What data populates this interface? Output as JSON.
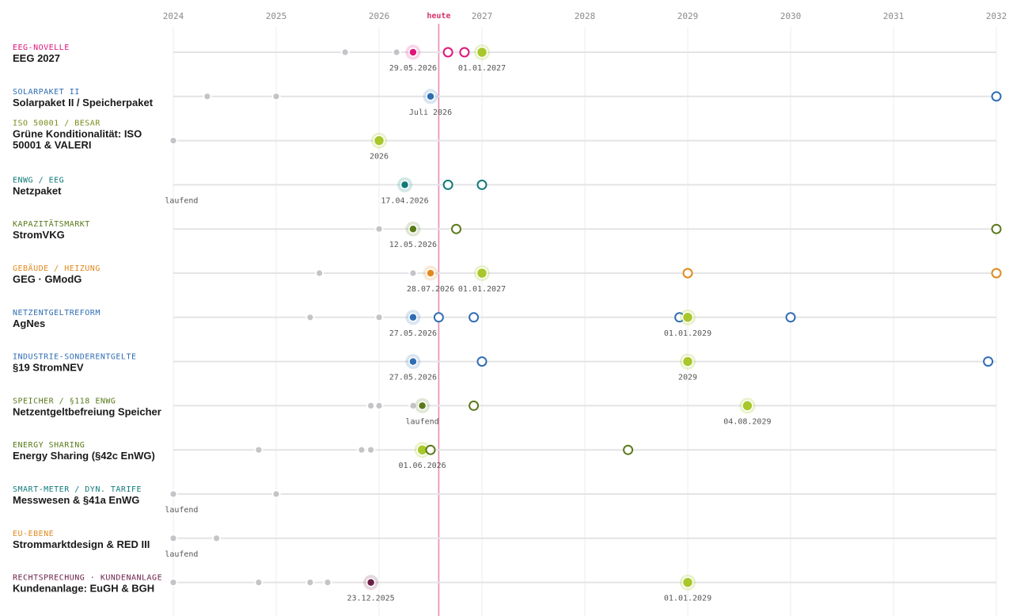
{
  "chart_data": {
    "type": "scatter",
    "x_axis": {
      "min": 2024.0,
      "max": 2032.0,
      "ticks": [
        "2024",
        "2025",
        "2026",
        "2027",
        "2028",
        "2029",
        "2030",
        "2031",
        "2032"
      ]
    },
    "today": {
      "label": "heute",
      "x": 2026.58
    },
    "colors": {
      "gray": "#c4c4c8",
      "milestone": "#a8c72b",
      "pink": "#e0157a",
      "blue": "#2f6db3",
      "olive": "#5a7a1a",
      "teal": "#117a7a",
      "orange": "#e08a1e",
      "oliveAlt": "#7a8a1a",
      "plum": "#6a1f48",
      "today_line": "#e88bb5"
    },
    "rows": [
      {
        "category": "EEG-NOVELLE",
        "title": [
          "EEG 2027"
        ],
        "color": "#e0157a",
        "points": [
          {
            "x": 2025.67,
            "kind": "past"
          },
          {
            "x": 2026.17,
            "kind": "past"
          },
          {
            "x": 2026.33,
            "kind": "current"
          },
          {
            "x": 2026.67,
            "kind": "future"
          },
          {
            "x": 2026.83,
            "kind": "future"
          },
          {
            "x": 2027.0,
            "kind": "milestone"
          }
        ],
        "labels": [
          {
            "x": 2026.33,
            "text": "29.05.2026"
          },
          {
            "x": 2027.0,
            "text": "01.01.2027"
          }
        ]
      },
      {
        "category": "SOLARPAKET II",
        "title": [
          "Solarpaket II / Speicherpaket"
        ],
        "color": "#2f6db3",
        "points": [
          {
            "x": 2024.33,
            "kind": "past"
          },
          {
            "x": 2025.0,
            "kind": "past"
          },
          {
            "x": 2026.5,
            "kind": "current"
          },
          {
            "x": 2032.0,
            "kind": "future"
          }
        ],
        "labels": [
          {
            "x": 2026.5,
            "text": "Juli 2026"
          }
        ]
      },
      {
        "category": "ISO 50001 / BESAR",
        "title": [
          "Grüne Konditionalität: ISO",
          "50001 & VALERI"
        ],
        "color": "#7a8a1a",
        "points": [
          {
            "x": 2024.0,
            "kind": "past"
          },
          {
            "x": 2026.0,
            "kind": "milestone"
          }
        ],
        "labels": [
          {
            "x": 2026.0,
            "text": "2026"
          }
        ]
      },
      {
        "category": "ENWG / EEG",
        "title": [
          "Netzpaket"
        ],
        "color": "#117a7a",
        "points": [
          {
            "x": 2026.25,
            "kind": "current"
          },
          {
            "x": 2026.67,
            "kind": "future"
          },
          {
            "x": 2027.0,
            "kind": "future"
          }
        ],
        "labels": [
          {
            "x": 2024.08,
            "text": "laufend"
          },
          {
            "x": 2026.25,
            "text": "17.04.2026"
          }
        ]
      },
      {
        "category": "KAPAZITÄTSMARKT",
        "title": [
          "StromVKG"
        ],
        "color": "#5a7a1a",
        "points": [
          {
            "x": 2026.0,
            "kind": "past"
          },
          {
            "x": 2026.33,
            "kind": "current"
          },
          {
            "x": 2026.75,
            "kind": "future"
          },
          {
            "x": 2032.0,
            "kind": "future"
          }
        ],
        "labels": [
          {
            "x": 2026.33,
            "text": "12.05.2026"
          }
        ]
      },
      {
        "category": "GEBÄUDE / HEIZUNG",
        "title": [
          "GEG · GModG"
        ],
        "color": "#e08a1e",
        "points": [
          {
            "x": 2025.42,
            "kind": "past"
          },
          {
            "x": 2026.33,
            "kind": "past"
          },
          {
            "x": 2026.5,
            "kind": "current"
          },
          {
            "x": 2027.0,
            "kind": "milestone"
          },
          {
            "x": 2029.0,
            "kind": "future"
          },
          {
            "x": 2032.0,
            "kind": "future"
          }
        ],
        "labels": [
          {
            "x": 2026.5,
            "text": "28.07.2026"
          },
          {
            "x": 2027.0,
            "text": "01.01.2027"
          }
        ]
      },
      {
        "category": "NETZENTGELTREFORM",
        "title": [
          "AgNes"
        ],
        "color": "#2f6db3",
        "points": [
          {
            "x": 2025.33,
            "kind": "past"
          },
          {
            "x": 2026.0,
            "kind": "past"
          },
          {
            "x": 2026.33,
            "kind": "current"
          },
          {
            "x": 2026.58,
            "kind": "future"
          },
          {
            "x": 2026.92,
            "kind": "future"
          },
          {
            "x": 2028.92,
            "kind": "future"
          },
          {
            "x": 2029.0,
            "kind": "milestone"
          },
          {
            "x": 2030.0,
            "kind": "future"
          }
        ],
        "labels": [
          {
            "x": 2026.33,
            "text": "27.05.2026"
          },
          {
            "x": 2029.0,
            "text": "01.01.2029"
          }
        ]
      },
      {
        "category": "INDUSTRIE-SONDERENTGELTE",
        "title": [
          "§19 StromNEV"
        ],
        "color": "#2f6db3",
        "points": [
          {
            "x": 2026.33,
            "kind": "current"
          },
          {
            "x": 2027.0,
            "kind": "future"
          },
          {
            "x": 2029.0,
            "kind": "milestone"
          },
          {
            "x": 2031.92,
            "kind": "future"
          }
        ],
        "labels": [
          {
            "x": 2026.33,
            "text": "27.05.2026"
          },
          {
            "x": 2029.0,
            "text": "2029"
          }
        ]
      },
      {
        "category": "SPEICHER / §118 ENWG",
        "title": [
          "Netzentgeltbefreiung Speicher"
        ],
        "color": "#5a7a1a",
        "points": [
          {
            "x": 2025.92,
            "kind": "past"
          },
          {
            "x": 2026.0,
            "kind": "past"
          },
          {
            "x": 2026.33,
            "kind": "past"
          },
          {
            "x": 2026.42,
            "kind": "current"
          },
          {
            "x": 2026.92,
            "kind": "future"
          },
          {
            "x": 2029.58,
            "kind": "milestone"
          }
        ],
        "labels": [
          {
            "x": 2026.42,
            "text": "laufend"
          },
          {
            "x": 2029.58,
            "text": "04.08.2029"
          }
        ]
      },
      {
        "category": "ENERGY SHARING",
        "title": [
          "Energy Sharing (§42c EnWG)"
        ],
        "color": "#5a7a1a",
        "points": [
          {
            "x": 2024.83,
            "kind": "past"
          },
          {
            "x": 2025.83,
            "kind": "past"
          },
          {
            "x": 2025.92,
            "kind": "past"
          },
          {
            "x": 2026.42,
            "kind": "milestone"
          },
          {
            "x": 2026.5,
            "kind": "future"
          },
          {
            "x": 2028.42,
            "kind": "future"
          }
        ],
        "labels": [
          {
            "x": 2026.42,
            "text": "01.06.2026"
          }
        ]
      },
      {
        "category": "SMART-METER / DYN. TARIFE",
        "title": [
          "Messwesen & §41a EnWG"
        ],
        "color": "#117a7a",
        "points": [
          {
            "x": 2024.0,
            "kind": "past"
          },
          {
            "x": 2025.0,
            "kind": "past"
          }
        ],
        "labels": [
          {
            "x": 2024.08,
            "text": "laufend"
          }
        ]
      },
      {
        "category": "EU-EBENE",
        "title": [
          "Strommarktdesign & RED III"
        ],
        "color": "#e08a1e",
        "points": [
          {
            "x": 2024.0,
            "kind": "past"
          },
          {
            "x": 2024.42,
            "kind": "past"
          }
        ],
        "labels": [
          {
            "x": 2024.08,
            "text": "laufend"
          }
        ]
      },
      {
        "category": "RECHTSPRECHUNG · KUNDENANLAGE",
        "title": [
          "Kundenanlage: EuGH & BGH"
        ],
        "color": "#6a1f48",
        "points": [
          {
            "x": 2024.0,
            "kind": "past"
          },
          {
            "x": 2024.83,
            "kind": "past"
          },
          {
            "x": 2025.33,
            "kind": "past"
          },
          {
            "x": 2025.5,
            "kind": "past"
          },
          {
            "x": 2025.92,
            "kind": "current"
          },
          {
            "x": 2029.0,
            "kind": "milestone"
          }
        ],
        "labels": [
          {
            "x": 2025.92,
            "text": "23.12.2025"
          },
          {
            "x": 2029.0,
            "text": "01.01.2029"
          }
        ]
      },
      {
        "category": "RECHTSPRECHUNG ·",
        "title": [
          ""
        ],
        "color": "#6a1f48",
        "points": [],
        "labels": []
      }
    ]
  }
}
